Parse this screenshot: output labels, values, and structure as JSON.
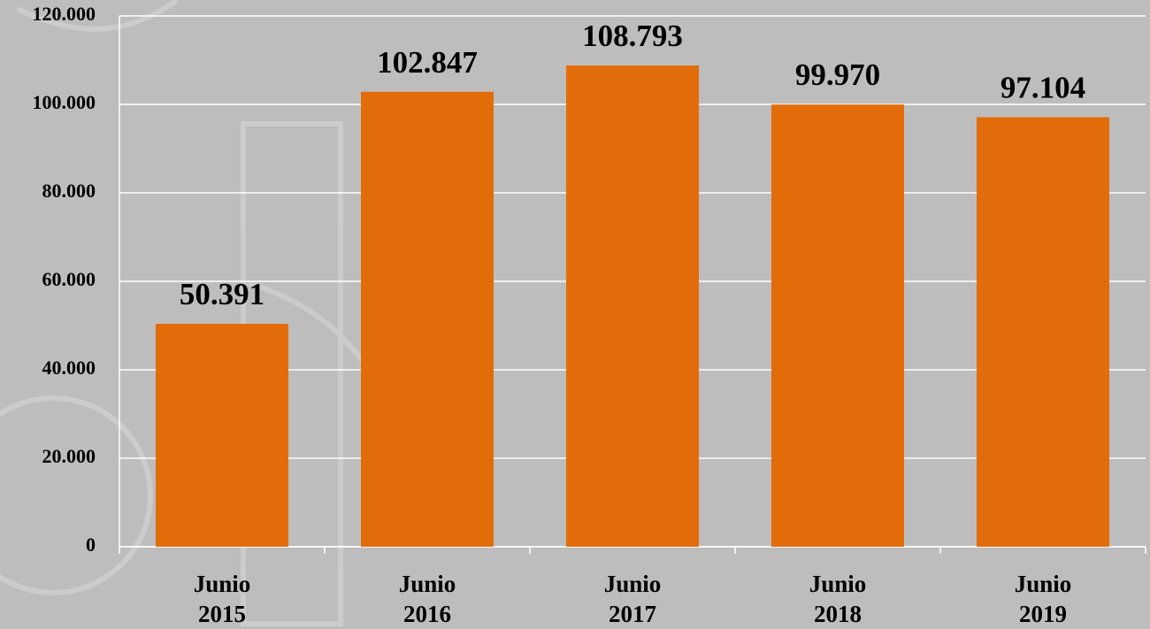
{
  "chart_data": {
    "type": "bar",
    "categories": [
      "Junio 2015",
      "Junio 2016",
      "Junio 2017",
      "Junio 2018",
      "Junio 2019"
    ],
    "values": [
      50391,
      102847,
      108793,
      99970,
      97104
    ],
    "value_labels": [
      "50.391",
      "102.847",
      "108.793",
      "99.970",
      "97.104"
    ],
    "color": "#e36c0a",
    "ylim": [
      0,
      120000
    ],
    "yticks": [
      {
        "value": 0,
        "label": "0"
      },
      {
        "value": 20000,
        "label": "20.000"
      },
      {
        "value": 40000,
        "label": "40.000"
      },
      {
        "value": 60000,
        "label": "60.000"
      },
      {
        "value": 80000,
        "label": "80.000"
      },
      {
        "value": 100000,
        "label": "100.000"
      },
      {
        "value": 120000,
        "label": "120.000"
      }
    ],
    "grid": true
  }
}
